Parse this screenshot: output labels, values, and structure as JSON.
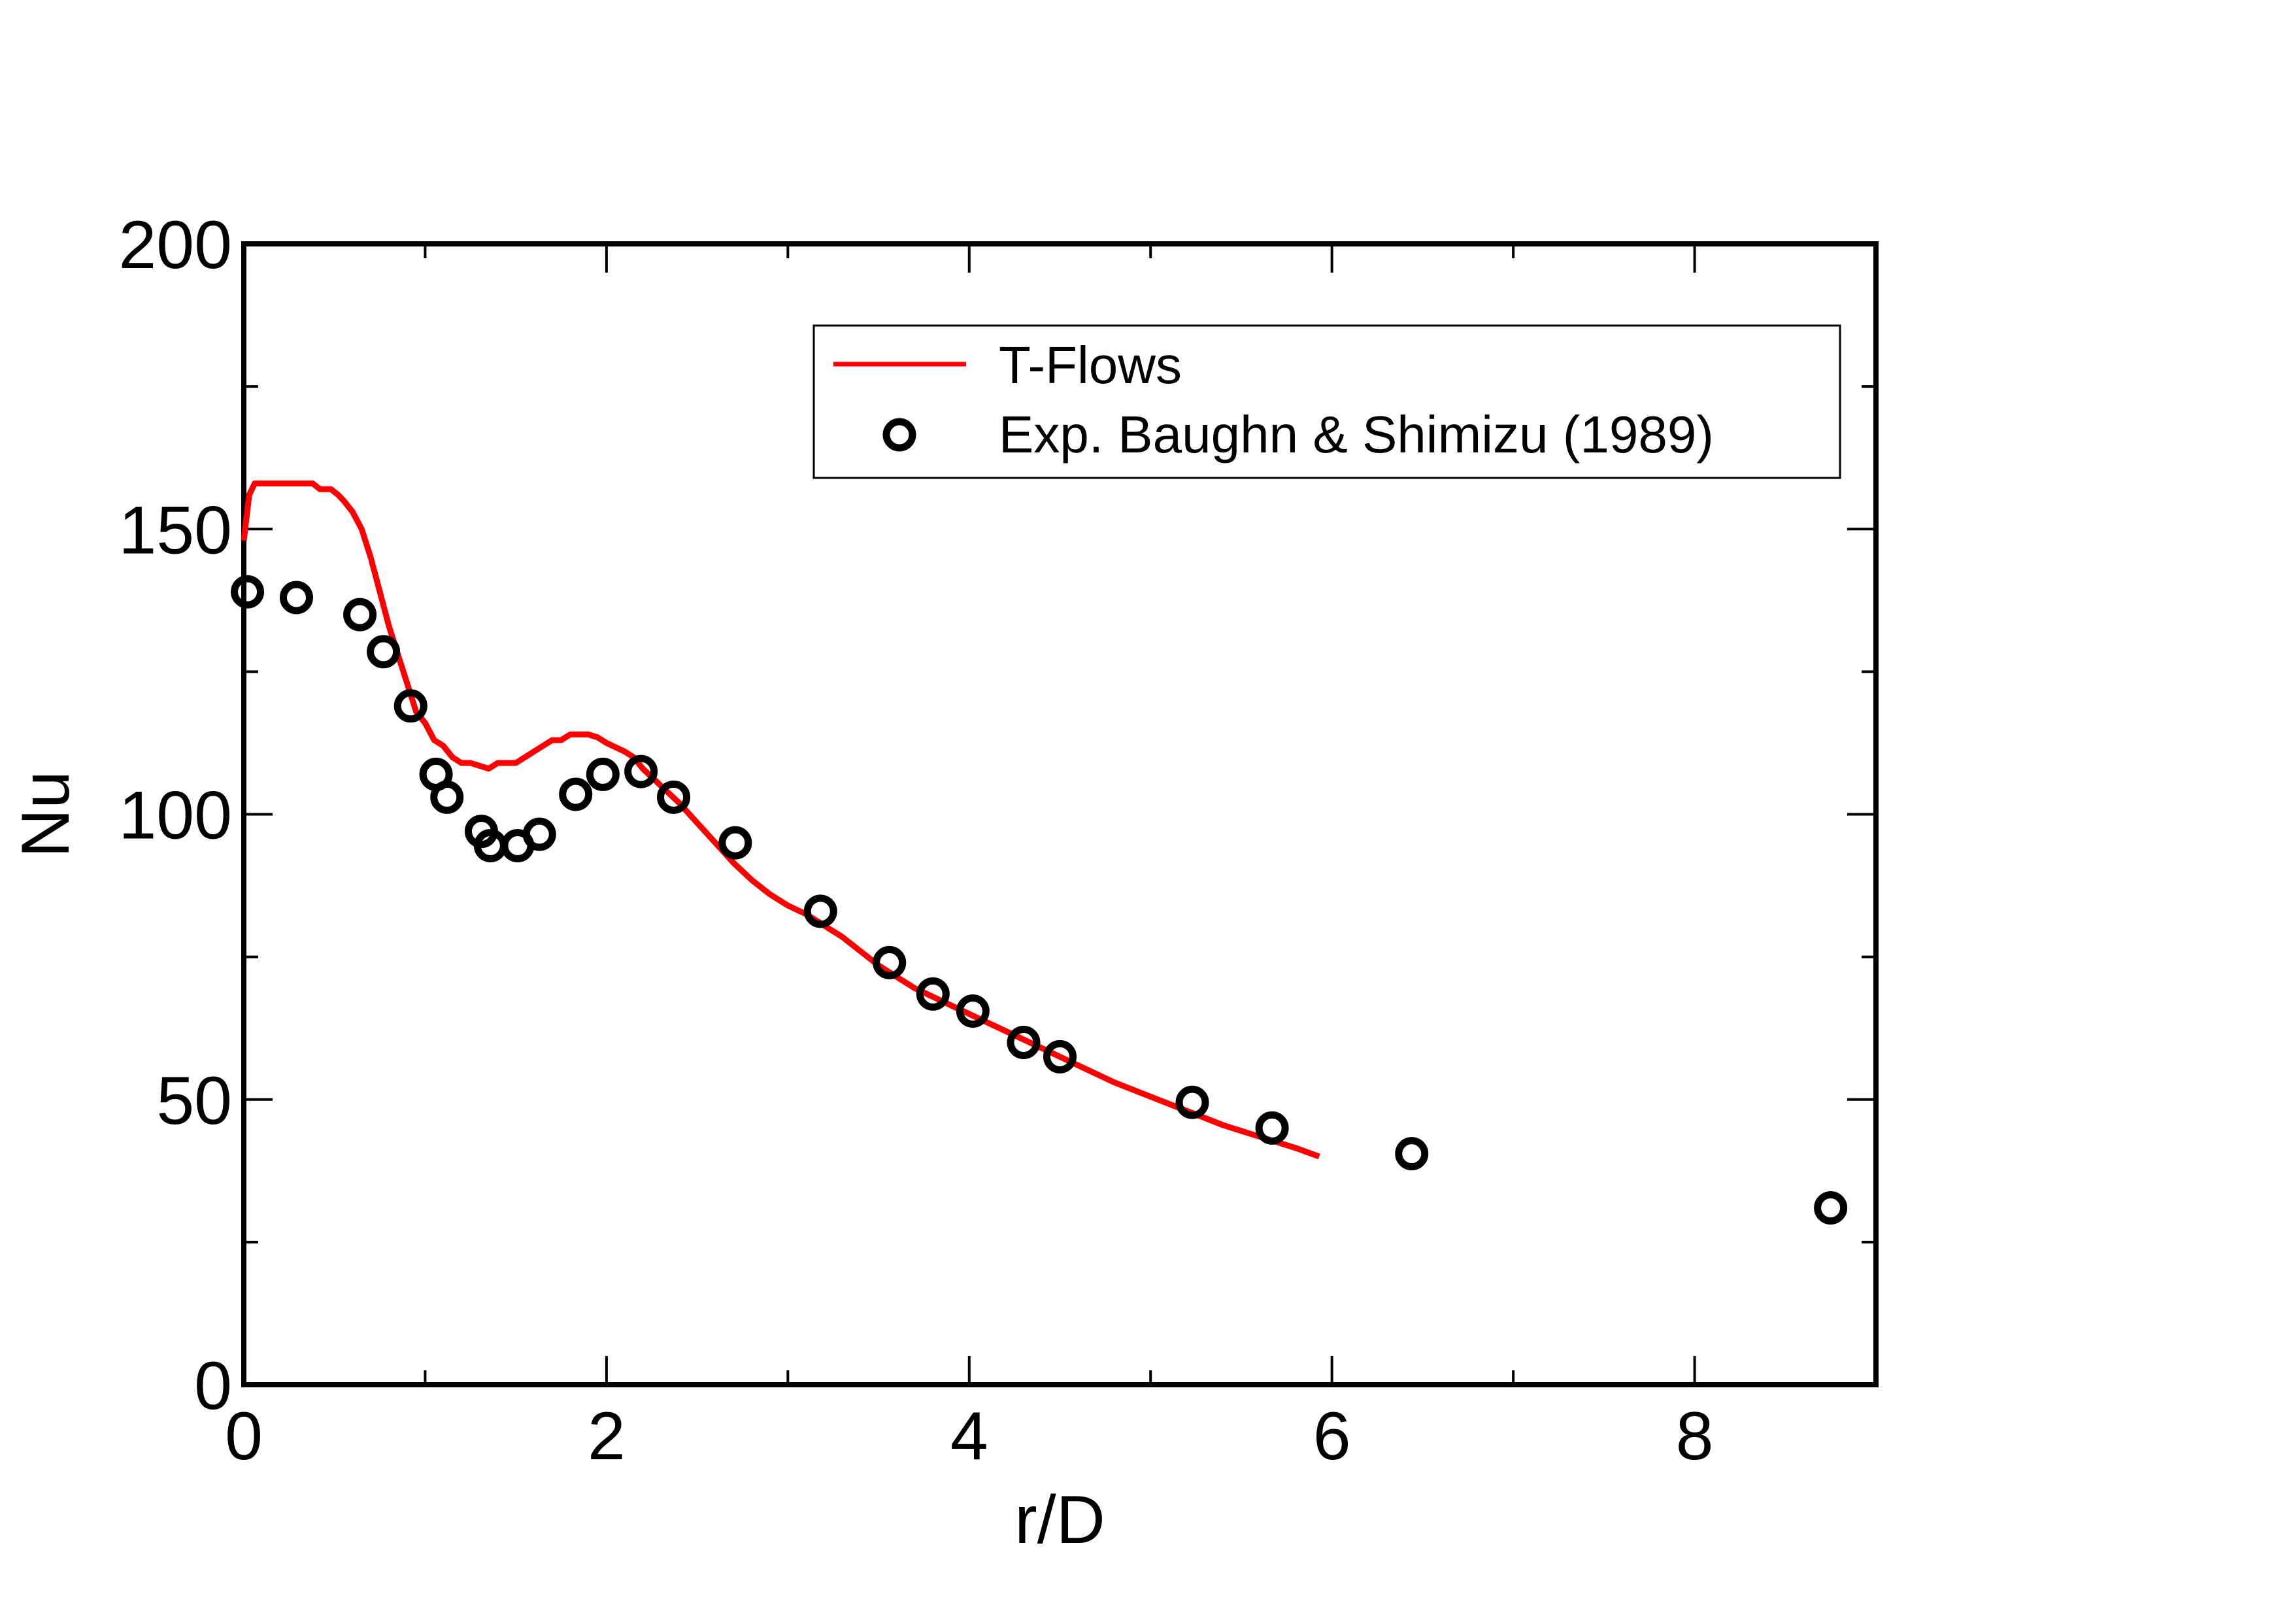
{
  "chart_data": {
    "type": "line",
    "title": "",
    "xlabel": "r/D",
    "ylabel": "Nu",
    "xlim": [
      0,
      9
    ],
    "ylim": [
      0,
      200
    ],
    "x_ticks": [
      0,
      2,
      4,
      6,
      8
    ],
    "x_tick_labels": [
      "0",
      "2",
      "4",
      "6",
      "8"
    ],
    "y_ticks": [
      0,
      50,
      100,
      150,
      200
    ],
    "y_tick_labels": [
      "0",
      "50",
      "100",
      "150",
      "200"
    ],
    "x_minor_step": 1,
    "y_minor_step": 25,
    "grid": false,
    "legend_position": "top-right",
    "series": [
      {
        "name": "T-Flows",
        "kind": "line",
        "color": "#ff0000",
        "x": [
          0.0,
          0.03,
          0.06,
          0.1,
          0.2,
          0.3,
          0.38,
          0.42,
          0.48,
          0.52,
          0.55,
          0.6,
          0.65,
          0.7,
          0.75,
          0.8,
          0.85,
          0.9,
          0.95,
          1.0,
          1.05,
          1.1,
          1.15,
          1.2,
          1.25,
          1.3,
          1.35,
          1.4,
          1.45,
          1.5,
          1.55,
          1.6,
          1.65,
          1.7,
          1.75,
          1.8,
          1.85,
          1.9,
          1.95,
          2.0,
          2.1,
          2.15,
          2.2,
          2.3,
          2.4,
          2.5,
          2.6,
          2.7,
          2.8,
          2.9,
          3.0,
          3.1,
          3.2,
          3.3,
          3.4,
          3.5,
          3.6,
          3.7,
          3.8,
          3.9,
          4.0,
          4.2,
          4.4,
          4.6,
          4.8,
          5.0,
          5.2,
          5.4,
          5.6,
          5.8,
          5.93
        ],
        "y": [
          148,
          156,
          158,
          158,
          158,
          158,
          158,
          157,
          157,
          156,
          155,
          153,
          150,
          145,
          139,
          133,
          128,
          123,
          118,
          116,
          113,
          112,
          110,
          109,
          109,
          108.5,
          108,
          109,
          109,
          109,
          110,
          111,
          112,
          113,
          113,
          114,
          114,
          114,
          113.5,
          112.5,
          111,
          110,
          108,
          105,
          102,
          98.5,
          95,
          91.5,
          88.5,
          86,
          84,
          82.5,
          80.5,
          78.5,
          76,
          73.5,
          71.5,
          69.5,
          68,
          66.5,
          65,
          62,
          59,
          56,
          53,
          50.5,
          48,
          45.5,
          43.5,
          41.5,
          40
        ]
      },
      {
        "name": "Exp. Baughn & Shimizu (1989)",
        "kind": "scatter",
        "color": "#000000",
        "x": [
          0.02,
          0.29,
          0.64,
          0.77,
          0.92,
          1.06,
          1.12,
          1.31,
          1.36,
          1.51,
          1.63,
          1.83,
          1.98,
          2.19,
          2.37,
          2.71,
          3.18,
          3.56,
          3.8,
          4.02,
          4.3,
          4.5,
          5.23,
          5.67,
          6.44,
          8.75
        ],
        "y": [
          139,
          138,
          135,
          128.5,
          119,
          107,
          103,
          97,
          94.5,
          94.5,
          96.5,
          103.5,
          107,
          107.5,
          103,
          95,
          83,
          74,
          68.5,
          65.5,
          60,
          57.5,
          49.5,
          45,
          40.5,
          31
        ]
      }
    ]
  }
}
